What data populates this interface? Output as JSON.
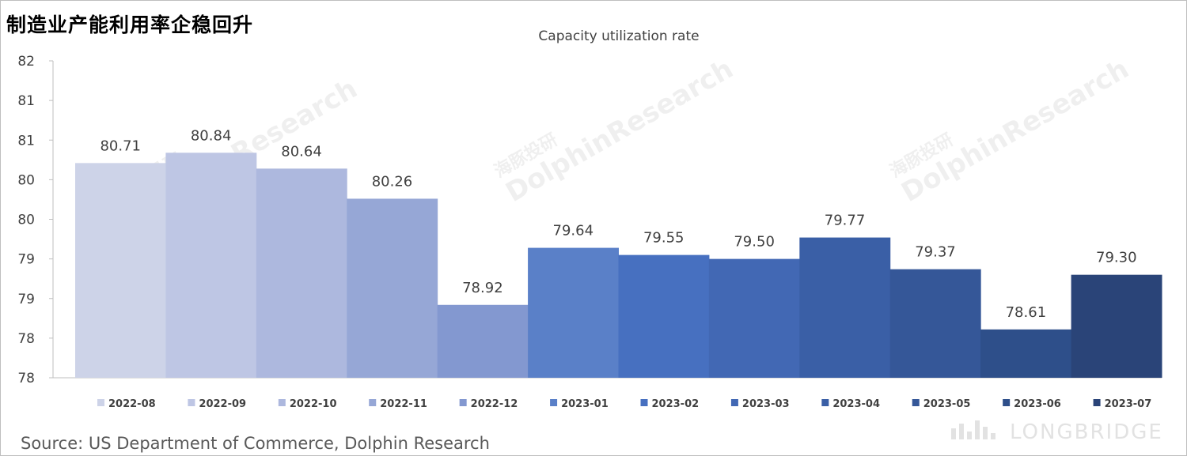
{
  "headline": "制造业产能利用率企稳回升",
  "source": "Source: US Department of Commerce, Dolphin Research",
  "watermark": {
    "cn": "海豚投研",
    "en": "DolphinResearch",
    "brand": "LONGBRIDGE"
  },
  "chart_data": {
    "type": "bar",
    "title": "Capacity utilization rate",
    "categories": [
      "2022-08",
      "2022-09",
      "2022-10",
      "2022-11",
      "2022-12",
      "2023-01",
      "2023-02",
      "2023-03",
      "2023-04",
      "2023-05",
      "2023-06",
      "2023-07"
    ],
    "values": [
      80.71,
      80.84,
      80.64,
      80.26,
      78.92,
      79.64,
      79.55,
      79.5,
      79.77,
      79.37,
      78.61,
      79.3
    ],
    "value_labels": [
      "80.71",
      "80.84",
      "80.64",
      "80.26",
      "78.92",
      "79.64",
      "79.55",
      "79.50",
      "79.77",
      "79.37",
      "78.61",
      "79.30"
    ],
    "ylim": [
      78.0,
      82.0
    ],
    "ytick_values": [
      78.0,
      78.5,
      79.0,
      79.5,
      80.0,
      80.5,
      81.0,
      81.5,
      82.0
    ],
    "ytick_labels": [
      "78",
      "78",
      "79",
      "79",
      "80",
      "80",
      "81",
      "81",
      "82"
    ],
    "colors": [
      "#cdd3e8",
      "#bec6e4",
      "#adb8de",
      "#96a7d6",
      "#8398d0",
      "#5a80c8",
      "#4770c0",
      "#4268b4",
      "#3a5fa6",
      "#355798",
      "#2e4f8a",
      "#2a4478"
    ],
    "legend_position": "bottom",
    "grid": false
  }
}
